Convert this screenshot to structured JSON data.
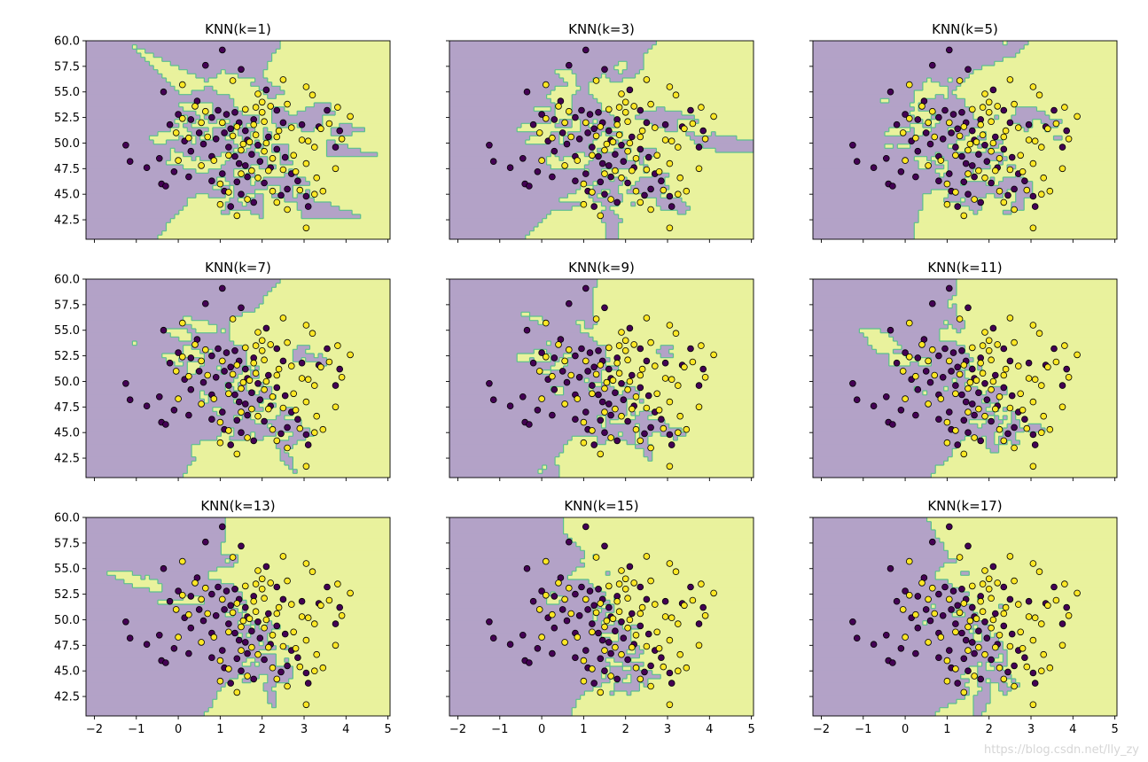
{
  "chart_data": [
    {
      "type": "scatter",
      "title": "KNN(k=1)",
      "k": 1,
      "xlim": [
        -2.2,
        5.05
      ],
      "ylim": [
        40.6,
        60.0
      ],
      "xticks": [
        -2,
        -1,
        0,
        1,
        2,
        3,
        4,
        5
      ],
      "yticks": [
        42.5,
        45.0,
        47.5,
        50.0,
        52.5,
        55.0,
        57.5,
        60.0
      ]
    },
    {
      "type": "scatter",
      "title": "KNN(k=3)",
      "k": 3,
      "xlim": [
        -2.2,
        5.05
      ],
      "ylim": [
        40.6,
        60.0
      ],
      "xticks": [
        -2,
        -1,
        0,
        1,
        2,
        3,
        4,
        5
      ],
      "yticks": [
        42.5,
        45.0,
        47.5,
        50.0,
        52.5,
        55.0,
        57.5,
        60.0
      ]
    },
    {
      "type": "scatter",
      "title": "KNN(k=5)",
      "k": 5,
      "xlim": [
        -2.2,
        5.05
      ],
      "ylim": [
        40.6,
        60.0
      ],
      "xticks": [
        -2,
        -1,
        0,
        1,
        2,
        3,
        4,
        5
      ],
      "yticks": [
        42.5,
        45.0,
        47.5,
        50.0,
        52.5,
        55.0,
        57.5,
        60.0
      ]
    },
    {
      "type": "scatter",
      "title": "KNN(k=7)",
      "k": 7,
      "xlim": [
        -2.2,
        5.05
      ],
      "ylim": [
        40.6,
        60.0
      ],
      "xticks": [
        -2,
        -1,
        0,
        1,
        2,
        3,
        4,
        5
      ],
      "yticks": [
        42.5,
        45.0,
        47.5,
        50.0,
        52.5,
        55.0,
        57.5,
        60.0
      ]
    },
    {
      "type": "scatter",
      "title": "KNN(k=9)",
      "k": 9,
      "xlim": [
        -2.2,
        5.05
      ],
      "ylim": [
        40.6,
        60.0
      ],
      "xticks": [
        -2,
        -1,
        0,
        1,
        2,
        3,
        4,
        5
      ],
      "yticks": [
        42.5,
        45.0,
        47.5,
        50.0,
        52.5,
        55.0,
        57.5,
        60.0
      ]
    },
    {
      "type": "scatter",
      "title": "KNN(k=11)",
      "k": 11,
      "xlim": [
        -2.2,
        5.05
      ],
      "ylim": [
        40.6,
        60.0
      ],
      "xticks": [
        -2,
        -1,
        0,
        1,
        2,
        3,
        4,
        5
      ],
      "yticks": [
        42.5,
        45.0,
        47.5,
        50.0,
        52.5,
        55.0,
        57.5,
        60.0
      ]
    },
    {
      "type": "scatter",
      "title": "KNN(k=13)",
      "k": 13,
      "xlim": [
        -2.2,
        5.05
      ],
      "ylim": [
        40.6,
        60.0
      ],
      "xticks": [
        -2,
        -1,
        0,
        1,
        2,
        3,
        4,
        5
      ],
      "yticks": [
        42.5,
        45.0,
        47.5,
        50.0,
        52.5,
        55.0,
        57.5,
        60.0
      ]
    },
    {
      "type": "scatter",
      "title": "KNN(k=15)",
      "k": 15,
      "xlim": [
        -2.2,
        5.05
      ],
      "ylim": [
        40.6,
        60.0
      ],
      "xticks": [
        -2,
        -1,
        0,
        1,
        2,
        3,
        4,
        5
      ],
      "yticks": [
        42.5,
        45.0,
        47.5,
        50.0,
        52.5,
        55.0,
        57.5,
        60.0
      ]
    },
    {
      "type": "scatter",
      "title": "KNN(k=17)",
      "k": 17,
      "xlim": [
        -2.2,
        5.05
      ],
      "ylim": [
        40.6,
        60.0
      ],
      "xticks": [
        -2,
        -1,
        0,
        1,
        2,
        3,
        4,
        5
      ],
      "yticks": [
        42.5,
        45.0,
        47.5,
        50.0,
        52.5,
        55.0,
        57.5,
        60.0
      ]
    }
  ],
  "points": {
    "class0": [
      [
        1.05,
        59.1
      ],
      [
        0.65,
        57.6
      ],
      [
        1.5,
        57.2
      ],
      [
        -0.35,
        55.0
      ],
      [
        -1.25,
        49.8
      ],
      [
        -1.15,
        48.2
      ],
      [
        -0.75,
        47.6
      ],
      [
        -0.45,
        48.5
      ],
      [
        -0.4,
        46.0
      ],
      [
        -0.3,
        45.8
      ],
      [
        -0.1,
        47.2
      ],
      [
        -0.2,
        51.8
      ],
      [
        0.0,
        52.8
      ],
      [
        0.3,
        52.3
      ],
      [
        0.5,
        51.0
      ],
      [
        0.15,
        50.2
      ],
      [
        0.3,
        49.2
      ],
      [
        0.6,
        49.9
      ],
      [
        0.8,
        52.5
      ],
      [
        0.95,
        53.2
      ],
      [
        1.15,
        52.8
      ],
      [
        1.35,
        53.0
      ],
      [
        1.45,
        52.0
      ],
      [
        1.25,
        51.4
      ],
      [
        1.6,
        51.2
      ],
      [
        1.8,
        52.3
      ],
      [
        0.9,
        50.4
      ],
      [
        1.2,
        49.6
      ],
      [
        1.35,
        48.7
      ],
      [
        1.45,
        48.0
      ],
      [
        1.6,
        47.8
      ],
      [
        1.75,
        48.9
      ],
      [
        1.9,
        49.8
      ],
      [
        1.05,
        47.0
      ],
      [
        0.8,
        46.3
      ],
      [
        1.4,
        46.2
      ],
      [
        1.65,
        46.7
      ],
      [
        2.05,
        46.1
      ],
      [
        1.1,
        45.3
      ],
      [
        1.5,
        45.0
      ],
      [
        1.8,
        44.2
      ],
      [
        2.45,
        44.9
      ],
      [
        2.6,
        45.5
      ],
      [
        2.7,
        47.0
      ],
      [
        2.85,
        46.3
      ],
      [
        3.05,
        44.8
      ],
      [
        3.1,
        43.8
      ],
      [
        1.25,
        43.8
      ],
      [
        2.35,
        53.2
      ],
      [
        2.5,
        52.0
      ],
      [
        2.95,
        51.8
      ],
      [
        3.35,
        51.6
      ],
      [
        3.55,
        53.2
      ],
      [
        3.85,
        51.2
      ],
      [
        3.75,
        49.6
      ],
      [
        2.15,
        50.6
      ],
      [
        2.35,
        49.4
      ],
      [
        0.45,
        54.1
      ],
      [
        2.1,
        55.2
      ],
      [
        1.95,
        48.2
      ],
      [
        2.2,
        47.6
      ],
      [
        0.25,
        46.7
      ],
      [
        0.8,
        48.7
      ],
      [
        1.1,
        51.0
      ],
      [
        1.65,
        50.3
      ],
      [
        2.55,
        48.6
      ]
    ],
    "class1": [
      [
        0.1,
        55.7
      ],
      [
        1.3,
        56.1
      ],
      [
        1.9,
        54.8
      ],
      [
        2.5,
        56.2
      ],
      [
        3.05,
        55.5
      ],
      [
        3.2,
        54.7
      ],
      [
        3.8,
        53.5
      ],
      [
        0.4,
        53.6
      ],
      [
        0.65,
        53.1
      ],
      [
        1.05,
        52.0
      ],
      [
        1.4,
        51.6
      ],
      [
        1.6,
        53.3
      ],
      [
        1.85,
        53.5
      ],
      [
        2.0,
        53.0
      ],
      [
        2.2,
        53.6
      ],
      [
        2.05,
        52.1
      ],
      [
        0.1,
        52.4
      ],
      [
        -0.05,
        51.0
      ],
      [
        0.0,
        48.3
      ],
      [
        0.55,
        47.8
      ],
      [
        0.7,
        50.6
      ],
      [
        0.85,
        48.3
      ],
      [
        1.2,
        48.8
      ],
      [
        1.5,
        49.3
      ],
      [
        1.55,
        49.9
      ],
      [
        1.7,
        50.1
      ],
      [
        1.85,
        50.8
      ],
      [
        2.05,
        49.2
      ],
      [
        2.25,
        48.5
      ],
      [
        2.15,
        47.3
      ],
      [
        2.5,
        47.4
      ],
      [
        2.75,
        48.8
      ],
      [
        2.95,
        50.3
      ],
      [
        3.1,
        50.2
      ],
      [
        3.25,
        49.6
      ],
      [
        3.05,
        48.0
      ],
      [
        2.8,
        47.2
      ],
      [
        3.3,
        46.6
      ],
      [
        3.45,
        45.3
      ],
      [
        3.75,
        47.5
      ],
      [
        3.9,
        50.4
      ],
      [
        4.1,
        52.6
      ],
      [
        3.6,
        51.9
      ],
      [
        3.4,
        51.4
      ],
      [
        2.7,
        51.5
      ],
      [
        2.35,
        50.6
      ],
      [
        1.0,
        46.0
      ],
      [
        1.2,
        45.2
      ],
      [
        1.0,
        44.0
      ],
      [
        1.4,
        42.9
      ],
      [
        1.65,
        44.5
      ],
      [
        2.25,
        45.3
      ],
      [
        2.35,
        44.2
      ],
      [
        2.6,
        43.5
      ],
      [
        3.05,
        41.7
      ],
      [
        3.25,
        45.0
      ],
      [
        2.9,
        45.4
      ],
      [
        1.75,
        47.3
      ],
      [
        1.9,
        46.6
      ],
      [
        1.3,
        50.7
      ],
      [
        1.8,
        51.8
      ],
      [
        2.4,
        51.2
      ],
      [
        0.25,
        50.5
      ],
      [
        0.55,
        52.0
      ],
      [
        2.0,
        54.0
      ],
      [
        2.6,
        53.8
      ],
      [
        1.5,
        47.0
      ],
      [
        2.1,
        50.0
      ]
    ]
  },
  "palette": {
    "class0_region": "#b3a2c7",
    "class1_region": "#e9f29d",
    "boundary": "#5bbf8e",
    "class0_point": "#440154",
    "class1_point": "#fde725",
    "edge": "#000000"
  },
  "watermark": "https://blog.csdn.net/lly_zy"
}
